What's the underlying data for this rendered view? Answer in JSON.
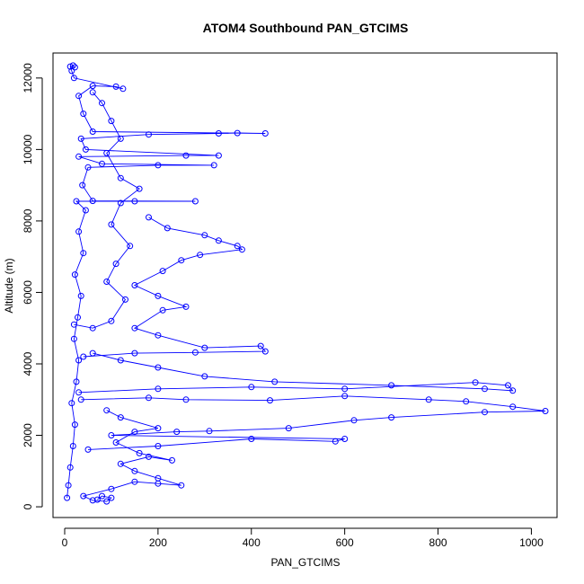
{
  "chart_data": {
    "type": "scatter",
    "title": "ATOM4 Southbound PAN_GTCIMS",
    "xlabel": "PAN_GTCIMS",
    "ylabel": "Altitude (m)",
    "xlim": [
      -25,
      1055
    ],
    "ylim": [
      -300,
      12700
    ],
    "x_ticks": [
      0,
      200,
      400,
      600,
      800,
      1000
    ],
    "y_ticks": [
      0,
      2000,
      4000,
      6000,
      8000,
      10000,
      12000
    ],
    "marker": "open-circle",
    "connected": true,
    "color": "#0000ff",
    "legend": "none",
    "grid": false,
    "series": [
      {
        "points": [
          [
            5,
            250
          ],
          [
            8,
            600
          ],
          [
            12,
            1100
          ],
          [
            18,
            1700
          ],
          [
            22,
            2300
          ],
          [
            15,
            2900
          ],
          [
            25,
            3500
          ],
          [
            30,
            4100
          ],
          [
            20,
            4700
          ],
          [
            28,
            5300
          ],
          [
            35,
            5900
          ],
          [
            22,
            6500
          ],
          [
            40,
            7100
          ],
          [
            30,
            7700
          ],
          [
            45,
            8300
          ],
          [
            25,
            8550
          ],
          [
            150,
            8550
          ],
          [
            280,
            8550
          ],
          [
            60,
            8560
          ],
          [
            38,
            9000
          ],
          [
            50,
            9500
          ],
          [
            200,
            9560
          ],
          [
            320,
            9560
          ],
          [
            80,
            9600
          ],
          [
            30,
            9800
          ],
          [
            260,
            9830
          ],
          [
            330,
            9830
          ],
          [
            45,
            10000
          ],
          [
            35,
            10300
          ],
          [
            180,
            10420
          ],
          [
            330,
            10450
          ],
          [
            370,
            10460
          ],
          [
            430,
            10450
          ],
          [
            60,
            10500
          ],
          [
            40,
            11000
          ],
          [
            30,
            11500
          ],
          [
            60,
            11780
          ],
          [
            110,
            11760
          ],
          [
            125,
            11700
          ],
          [
            20,
            12000
          ],
          [
            15,
            12200
          ],
          [
            12,
            12320
          ],
          [
            18,
            12350
          ],
          [
            22,
            12300
          ]
        ]
      },
      {
        "points": [
          [
            35,
            3000
          ],
          [
            180,
            3050
          ],
          [
            260,
            3000
          ],
          [
            440,
            2980
          ],
          [
            600,
            3100
          ],
          [
            780,
            3000
          ],
          [
            860,
            2950
          ],
          [
            960,
            2800
          ],
          [
            1030,
            2680
          ],
          [
            900,
            2650
          ],
          [
            700,
            2500
          ],
          [
            620,
            2420
          ],
          [
            480,
            2200
          ],
          [
            310,
            2120
          ],
          [
            240,
            2100
          ],
          [
            100,
            2000
          ],
          [
            600,
            1900
          ],
          [
            580,
            1830
          ],
          [
            400,
            1900
          ],
          [
            200,
            1700
          ],
          [
            50,
            1600
          ]
        ]
      },
      {
        "points": [
          [
            30,
            3200
          ],
          [
            200,
            3300
          ],
          [
            400,
            3350
          ],
          [
            600,
            3300
          ],
          [
            880,
            3480
          ],
          [
            950,
            3400
          ],
          [
            960,
            3250
          ],
          [
            900,
            3300
          ],
          [
            700,
            3400
          ],
          [
            450,
            3500
          ],
          [
            300,
            3650
          ],
          [
            200,
            3900
          ],
          [
            120,
            4100
          ],
          [
            60,
            4300
          ]
        ]
      },
      {
        "points": [
          [
            40,
            4200
          ],
          [
            150,
            4300
          ],
          [
            280,
            4320
          ],
          [
            430,
            4350
          ],
          [
            420,
            4500
          ],
          [
            300,
            4450
          ],
          [
            200,
            4800
          ],
          [
            150,
            5000
          ],
          [
            210,
            5500
          ],
          [
            260,
            5600
          ],
          [
            200,
            5900
          ],
          [
            150,
            6200
          ],
          [
            210,
            6600
          ],
          [
            250,
            6900
          ],
          [
            290,
            7050
          ],
          [
            380,
            7200
          ],
          [
            370,
            7300
          ],
          [
            330,
            7450
          ],
          [
            300,
            7600
          ],
          [
            220,
            7800
          ],
          [
            180,
            8100
          ]
        ]
      },
      {
        "points": [
          [
            70,
            200
          ],
          [
            80,
            300
          ],
          [
            100,
            250
          ],
          [
            90,
            150
          ],
          [
            60,
            180
          ],
          [
            40,
            300
          ],
          [
            100,
            500
          ],
          [
            150,
            700
          ],
          [
            200,
            650
          ],
          [
            250,
            600
          ],
          [
            200,
            800
          ],
          [
            150,
            1000
          ],
          [
            120,
            1200
          ],
          [
            180,
            1400
          ],
          [
            230,
            1300
          ],
          [
            160,
            1500
          ],
          [
            110,
            1800
          ],
          [
            150,
            2100
          ],
          [
            200,
            2200
          ],
          [
            120,
            2500
          ],
          [
            90,
            2700
          ]
        ]
      },
      {
        "points": [
          [
            20,
            5100
          ],
          [
            60,
            5000
          ],
          [
            100,
            5200
          ],
          [
            130,
            5800
          ],
          [
            90,
            6300
          ],
          [
            110,
            6800
          ],
          [
            140,
            7300
          ],
          [
            100,
            7900
          ],
          [
            120,
            8500
          ],
          [
            160,
            8900
          ],
          [
            120,
            9200
          ],
          [
            90,
            9900
          ],
          [
            120,
            10300
          ],
          [
            100,
            10800
          ],
          [
            80,
            11300
          ],
          [
            60,
            11600
          ]
        ]
      }
    ],
    "annotations": []
  }
}
